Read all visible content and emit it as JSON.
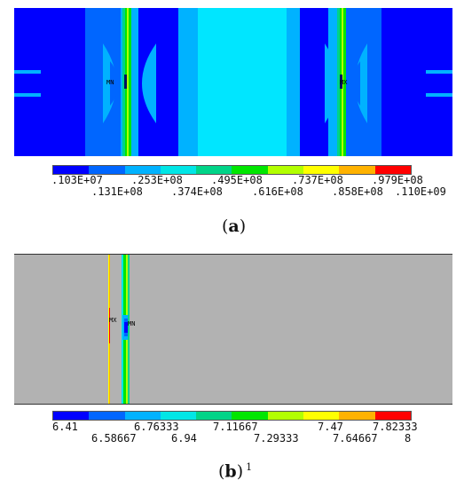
{
  "panel_a": {
    "legend_colors": [
      "#0000ff",
      "#0066ff",
      "#00b2ff",
      "#00e6e6",
      "#00d488",
      "#00e600",
      "#b2ff00",
      "#ffff00",
      "#ffb200",
      "#ff0000"
    ],
    "legend_labels_top": [
      ".103E+07",
      ".253E+08",
      ".495E+08",
      ".737E+08",
      ".979E+08"
    ],
    "legend_labels_bottom": [
      ".131E+08",
      ".374E+08",
      ".616E+08",
      ".858E+08",
      ".110E+09"
    ],
    "marker_left": "MN",
    "marker_right": "MX",
    "caption_open": "(",
    "caption_letter": "a",
    "caption_close": ")"
  },
  "panel_b": {
    "legend_colors": [
      "#0000ff",
      "#0066ff",
      "#00b2ff",
      "#00e6e6",
      "#00d488",
      "#00e600",
      "#b2ff00",
      "#ffff00",
      "#ffb200",
      "#ff0000"
    ],
    "legend_labels_top": [
      "6.41",
      "6.76333",
      "7.11667",
      "7.47",
      "7.82333"
    ],
    "legend_labels_bottom": [
      "6.58667",
      "6.94",
      "7.29333",
      "7.64667",
      "8"
    ],
    "marker_left": "MX",
    "marker_right": "MN",
    "caption_open": "(",
    "caption_letter": "b",
    "caption_close": ")",
    "caption_sup": "1"
  }
}
